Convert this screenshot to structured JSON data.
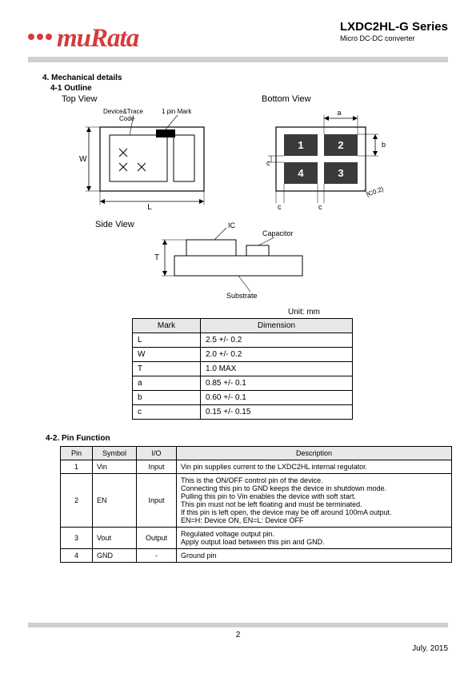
{
  "header": {
    "logo_text": "muRata",
    "series": "LXDC2HL-G  Series",
    "subtitle": "Micro  DC-DC  converter"
  },
  "section4": {
    "title": "4. Mechanical details",
    "outline": "4-1   Outline",
    "top_view": "Top View",
    "bottom_view": "Bottom View",
    "side_view": "Side View",
    "top_labels": {
      "device_trace": "Device&Trace\nCode",
      "pin_mark": "1 pin Mark",
      "W": "W",
      "L": "L"
    },
    "bottom_labels": {
      "a": "a",
      "b": "b",
      "c": "c",
      "c2": "c",
      "pads": [
        "1",
        "2",
        "4",
        "3"
      ],
      "co2": "(CO.2)"
    },
    "side_labels": {
      "ic": "IC",
      "capacitor": "Capacitor",
      "substrate": "Substrate",
      "T": "T"
    },
    "unit": "Unit: mm"
  },
  "dim_table": {
    "headers": [
      "Mark",
      "Dimension"
    ],
    "rows": [
      [
        "L",
        "2.5 +/- 0.2"
      ],
      [
        "W",
        "2.0 +/- 0.2"
      ],
      [
        "T",
        "1.0 MAX"
      ],
      [
        "a",
        "0.85 +/- 0.1"
      ],
      [
        "b",
        "0.60 +/- 0.1"
      ],
      [
        "c",
        "0.15 +/- 0.15"
      ]
    ]
  },
  "pin_section": {
    "title": "4-2. Pin Function",
    "headers": [
      "Pin",
      "Symbol",
      "I/O",
      "Description"
    ],
    "rows": [
      {
        "pin": "1",
        "sym": "Vin",
        "io": "Input",
        "desc": "Vin pin supplies current to the LXDC2HL internal regulator."
      },
      {
        "pin": "2",
        "sym": "EN",
        "io": "Input",
        "desc": "This is the ON/OFF control pin of the device.\nConnecting this pin to GND keeps the device in shutdown mode.\nPulling this pin to Vin enables the device with soft start.\nThis pin must not be left floating and must be terminated.\nIf this pin is left open, the device may be off around 100mA output.\nEN=H: Device ON,    EN=L: Device OFF"
      },
      {
        "pin": "3",
        "sym": "Vout",
        "io": "Output",
        "desc": "Regulated voltage output pin.\nApply output load between this pin and GND."
      },
      {
        "pin": "4",
        "sym": "GND",
        "io": "-",
        "desc": "Ground pin"
      }
    ]
  },
  "footer": {
    "page": "2",
    "date": "July.  2015"
  },
  "colors": {
    "brand": "#d43b3f",
    "header_bar": "#d0d0d0",
    "table_header_bg": "#e8e8e8",
    "pad_fill": "#3a3a3a",
    "pad_text": "#ffffff"
  }
}
